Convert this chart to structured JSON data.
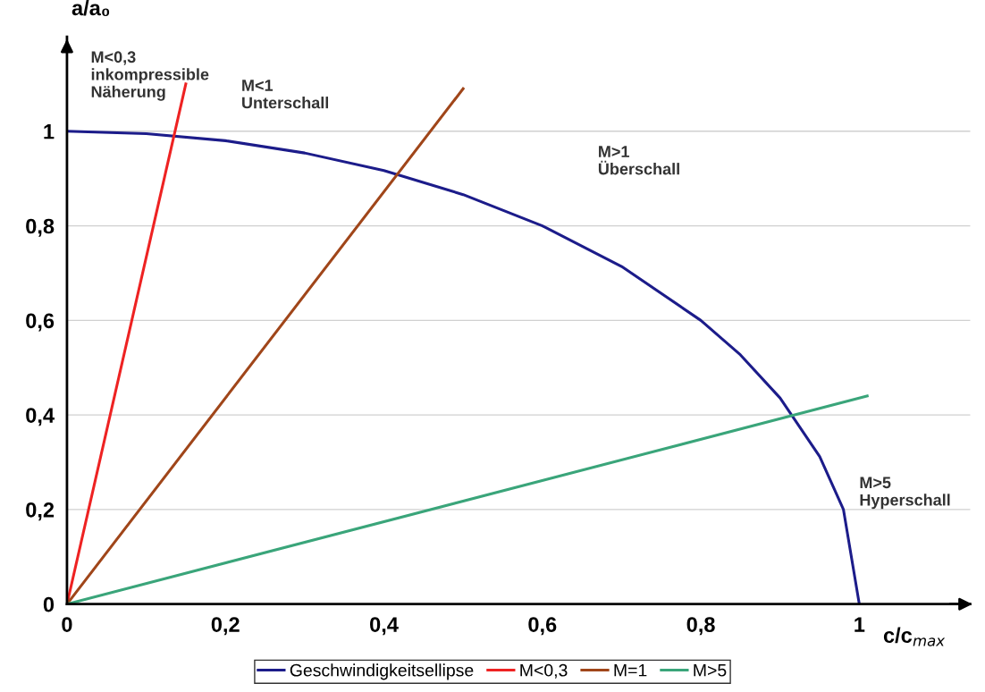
{
  "chart_data": {
    "type": "line",
    "xlabel": "c/c$_{max}$",
    "ylabel": "a/a₀",
    "xlim": [
      0,
      1.14
    ],
    "ylim": [
      0,
      1.2
    ],
    "xticks": [
      {
        "value": 0,
        "label": "0"
      },
      {
        "value": 0.2,
        "label": "0,2"
      },
      {
        "value": 0.4,
        "label": "0,4"
      },
      {
        "value": 0.6,
        "label": "0,6"
      },
      {
        "value": 0.8,
        "label": "0,8"
      },
      {
        "value": 1,
        "label": "1"
      }
    ],
    "yticks": [
      {
        "value": 0,
        "label": "0"
      },
      {
        "value": 0.2,
        "label": "0,2"
      },
      {
        "value": 0.4,
        "label": "0,4"
      },
      {
        "value": 0.6,
        "label": "0,6"
      },
      {
        "value": 0.8,
        "label": "0,8"
      },
      {
        "value": 1,
        "label": "1"
      }
    ],
    "grid": "y",
    "legend": "bottom",
    "marker": "none",
    "line_style": "solid",
    "series": [
      {
        "name": "Geschwindigkeitsellipse",
        "color": "#1c1c8a",
        "x": [
          0,
          0.1,
          0.2,
          0.3,
          0.4,
          0.5,
          0.6,
          0.7,
          0.8,
          0.85,
          0.9,
          0.95,
          0.98,
          1.0
        ],
        "values": [
          1,
          0.995,
          0.98,
          0.954,
          0.917,
          0.866,
          0.8,
          0.714,
          0.6,
          0.527,
          0.436,
          0.312,
          0.2,
          0
        ]
      },
      {
        "name": "M<0,3",
        "color": "#ee2222",
        "x": [
          0,
          0.15
        ],
        "values": [
          0,
          1.1
        ]
      },
      {
        "name": "M=1",
        "color": "#a0461a",
        "x": [
          0,
          0.5
        ],
        "values": [
          0,
          1.09
        ]
      },
      {
        "name": "M>5",
        "color": "#3aa57a",
        "x": [
          0,
          1.01
        ],
        "values": [
          0,
          0.44
        ]
      }
    ],
    "annotations": [
      "M<0,3\ninkompressible\nNäherung",
      "M<1\nUnterschall",
      "M>1\nÜberschall",
      "M>5\nHyperschall"
    ]
  }
}
